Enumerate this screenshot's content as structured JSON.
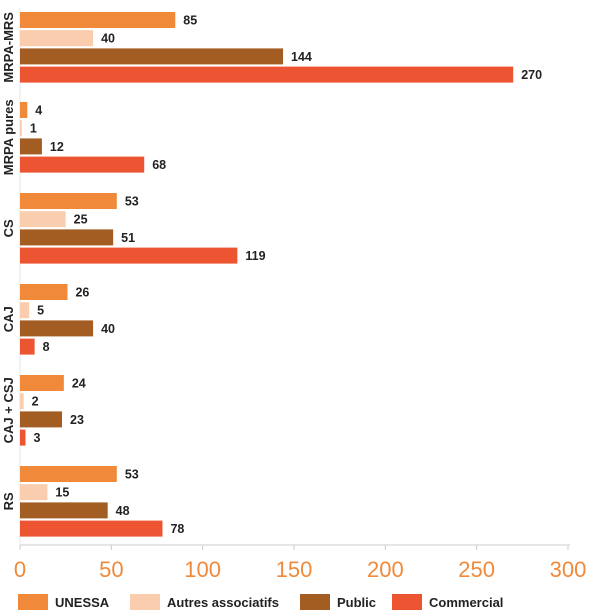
{
  "chart_data": {
    "type": "bar",
    "orientation": "horizontal",
    "categories": [
      "MRPA-MRS",
      "MRPA pures",
      "CS",
      "CAJ",
      "CAJ + CSJ",
      "RS"
    ],
    "series": [
      {
        "name": "UNESSA",
        "color": "#F08A3A",
        "values": [
          85,
          4,
          53,
          26,
          24,
          53
        ]
      },
      {
        "name": "Autres associatifs",
        "color": "#FACDAE",
        "values": [
          40,
          1,
          25,
          5,
          2,
          15
        ]
      },
      {
        "name": "Public",
        "color": "#A35C22",
        "values": [
          144,
          12,
          51,
          40,
          23,
          48
        ]
      },
      {
        "name": "Commercial",
        "color": "#EC5432",
        "values": [
          270,
          68,
          119,
          8,
          3,
          78
        ]
      }
    ],
    "xlim": [
      0,
      300
    ],
    "x_ticks": [
      "0",
      "50",
      "100",
      "150",
      "200",
      "250",
      "300"
    ],
    "tick_color": "#F08A3A",
    "grid": false,
    "legend_position": "bottom"
  }
}
